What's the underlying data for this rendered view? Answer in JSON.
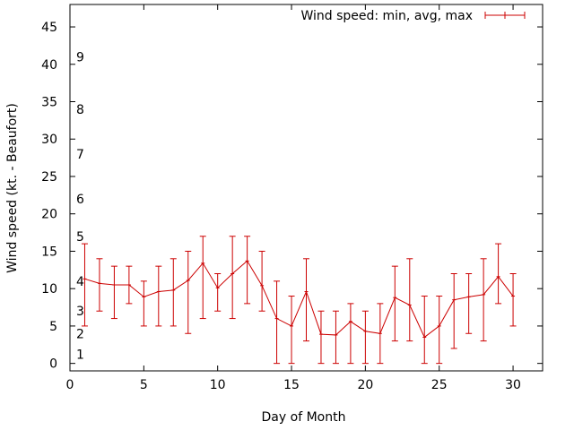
{
  "chart_data": {
    "type": "line",
    "title": "",
    "xlabel": "Day of Month",
    "ylabel": "Wind speed (kt. - Beaufort)",
    "xlim": [
      0,
      32
    ],
    "ylim": [
      -1,
      48
    ],
    "x_ticks": [
      0,
      5,
      10,
      15,
      20,
      25,
      30
    ],
    "y_ticks": [
      0,
      5,
      10,
      15,
      20,
      25,
      30,
      35,
      40,
      45
    ],
    "beaufort_labels": [
      {
        "label": "1",
        "y": 1.2
      },
      {
        "label": "2",
        "y": 4.0
      },
      {
        "label": "3",
        "y": 7.0
      },
      {
        "label": "4",
        "y": 11.0
      },
      {
        "label": "5",
        "y": 17.0
      },
      {
        "label": "6",
        "y": 22.0
      },
      {
        "label": "7",
        "y": 28.0
      },
      {
        "label": "8",
        "y": 34.0
      },
      {
        "label": "9",
        "y": 41.0
      }
    ],
    "legend": {
      "position": "top-right"
    },
    "series": [
      {
        "name": "Wind speed: min, avg, max",
        "color": "#cc0000",
        "points": [
          {
            "x": 1,
            "avg": 11.3,
            "min": 5,
            "max": 16
          },
          {
            "x": 2,
            "avg": 10.7,
            "min": 7,
            "max": 14
          },
          {
            "x": 3,
            "avg": 10.5,
            "min": 6,
            "max": 13
          },
          {
            "x": 4,
            "avg": 10.5,
            "min": 8,
            "max": 13
          },
          {
            "x": 5,
            "avg": 8.9,
            "min": 5,
            "max": 11
          },
          {
            "x": 6,
            "avg": 9.6,
            "min": 5,
            "max": 13
          },
          {
            "x": 7,
            "avg": 9.8,
            "min": 5,
            "max": 14
          },
          {
            "x": 8,
            "avg": 11.1,
            "min": 4,
            "max": 15
          },
          {
            "x": 9,
            "avg": 13.4,
            "min": 6,
            "max": 17
          },
          {
            "x": 10,
            "avg": 10.1,
            "min": 7,
            "max": 12
          },
          {
            "x": 11,
            "avg": 12.0,
            "min": 6,
            "max": 17
          },
          {
            "x": 12,
            "avg": 13.7,
            "min": 8,
            "max": 17
          },
          {
            "x": 13,
            "avg": 10.4,
            "min": 7,
            "max": 15
          },
          {
            "x": 14,
            "avg": 6.0,
            "min": 0,
            "max": 11
          },
          {
            "x": 15,
            "avg": 5.0,
            "min": 0,
            "max": 9
          },
          {
            "x": 16,
            "avg": 9.6,
            "min": 3,
            "max": 14
          },
          {
            "x": 17,
            "avg": 3.9,
            "min": 0,
            "max": 7
          },
          {
            "x": 18,
            "avg": 3.8,
            "min": 0,
            "max": 7
          },
          {
            "x": 19,
            "avg": 5.6,
            "min": 0,
            "max": 8
          },
          {
            "x": 20,
            "avg": 4.3,
            "min": 0,
            "max": 7
          },
          {
            "x": 21,
            "avg": 4.0,
            "min": 0,
            "max": 8
          },
          {
            "x": 22,
            "avg": 8.8,
            "min": 3,
            "max": 13
          },
          {
            "x": 23,
            "avg": 7.8,
            "min": 3,
            "max": 14
          },
          {
            "x": 24,
            "avg": 3.5,
            "min": 0,
            "max": 9
          },
          {
            "x": 25,
            "avg": 5.0,
            "min": 0,
            "max": 9
          },
          {
            "x": 26,
            "avg": 8.5,
            "min": 2,
            "max": 12
          },
          {
            "x": 27,
            "avg": 8.9,
            "min": 4,
            "max": 12
          },
          {
            "x": 28,
            "avg": 9.2,
            "min": 3,
            "max": 14
          },
          {
            "x": 29,
            "avg": 11.6,
            "min": 8,
            "max": 16
          },
          {
            "x": 30,
            "avg": 9.0,
            "min": 5,
            "max": 12
          }
        ]
      }
    ]
  }
}
